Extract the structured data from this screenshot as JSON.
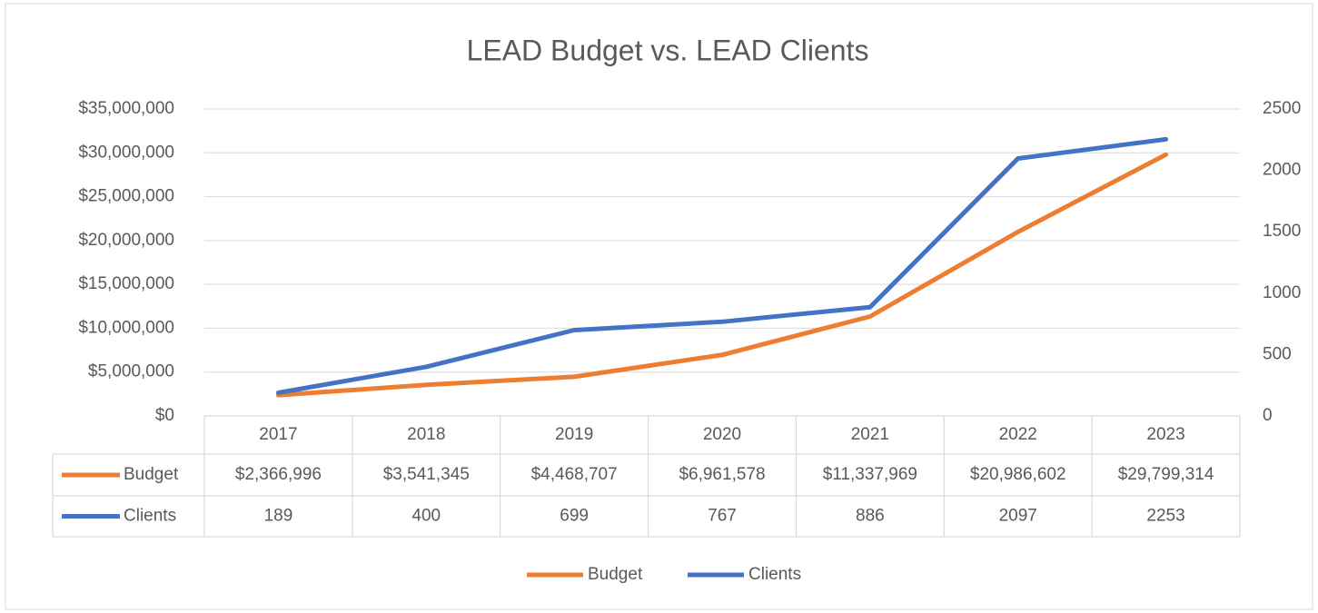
{
  "chart_data": {
    "type": "line",
    "title": "LEAD Budget vs. LEAD Clients",
    "categories": [
      "2017",
      "2018",
      "2019",
      "2020",
      "2021",
      "2022",
      "2023"
    ],
    "series": [
      {
        "name": "Budget",
        "color": "#ed7d31",
        "values": [
          2366996,
          3541345,
          4468707,
          6961578,
          11337969,
          20986602,
          29799314
        ],
        "value_labels": [
          "$2,366,996",
          "$3,541,345",
          "$4,468,707",
          "$6,961,578",
          "$11,337,969",
          "$20,986,602",
          "$29,799,314"
        ]
      },
      {
        "name": "Clients",
        "color": "#4472c4",
        "axis": "y2",
        "values": [
          189,
          400,
          699,
          767,
          886,
          2097,
          2253
        ]
      }
    ],
    "ylim": [
      0,
      35000000
    ],
    "yticks": [
      {
        "value": 0,
        "label": "$0"
      },
      {
        "value": 5000000,
        "label": "$5,000,000"
      },
      {
        "value": 10000000,
        "label": "$10,000,000"
      },
      {
        "value": 15000000,
        "label": "$15,000,000"
      },
      {
        "value": 20000000,
        "label": "$20,000,000"
      },
      {
        "value": 25000000,
        "label": "$25,000,000"
      },
      {
        "value": 30000000,
        "label": "$30,000,000"
      },
      {
        "value": 35000000,
        "label": "$35,000,000"
      }
    ],
    "y2lim": [
      0,
      2500
    ],
    "y2ticks": [
      0,
      500,
      1000,
      1500,
      2000,
      2500
    ],
    "grid": true,
    "data_table": true,
    "legend": "bottom"
  }
}
